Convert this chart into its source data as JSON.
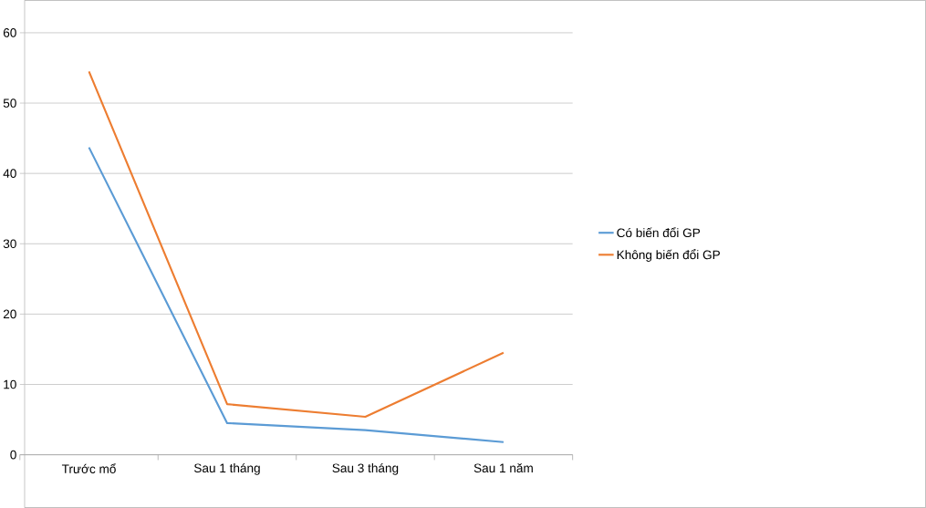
{
  "chart_data": {
    "type": "line",
    "categories": [
      "Trước mổ",
      "Sau 1 tháng",
      "Sau 3 tháng",
      "Sau 1 năm"
    ],
    "series": [
      {
        "name": "Có biến đổi GP",
        "color": "#5b9bd5",
        "values": [
          43.7,
          4.5,
          3.5,
          1.8
        ]
      },
      {
        "name": "Không biến đổi GP",
        "color": "#ed7d31",
        "values": [
          54.5,
          7.2,
          5.4,
          14.5
        ]
      }
    ],
    "ylim": [
      0,
      60
    ],
    "yticks": [
      0,
      10,
      20,
      30,
      40,
      50,
      60
    ],
    "grid": "y",
    "legend": "right"
  }
}
